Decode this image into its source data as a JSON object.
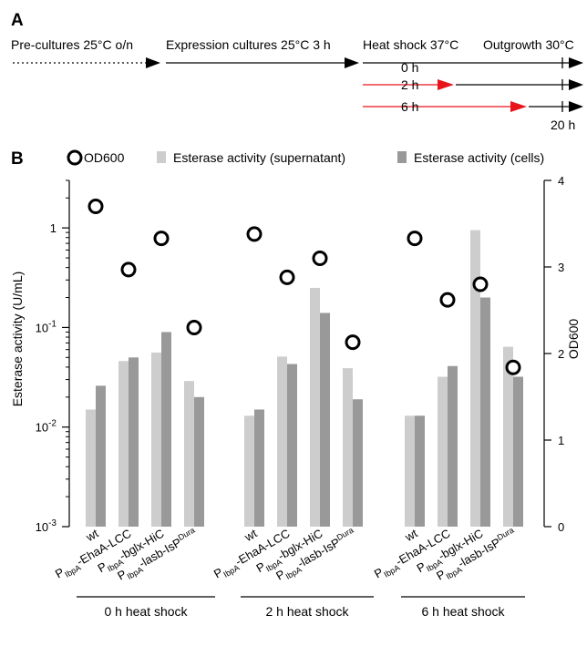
{
  "panel_a": {
    "label": "A",
    "stage_labels": [
      "Pre-cultures 25°C o/n",
      "Expression cultures 25°C 3 h",
      "Heat shock 37°C",
      "Outgrowth 30°C"
    ],
    "rows": [
      {
        "label": "0 h",
        "shock_hours": 0
      },
      {
        "label": "2 h",
        "shock_hours": 2
      },
      {
        "label": "6 h",
        "shock_hours": 6
      }
    ],
    "end_label": "20 h",
    "colors": {
      "line": "#000000",
      "heat": "#e8141c"
    }
  },
  "panel_b": {
    "label": "B",
    "legend": {
      "od600": "OD600",
      "supernatant": "Esterase activity (supernatant)",
      "cells": "Esterase activity (cells)"
    },
    "colors": {
      "supernatant": "#cdcdcd",
      "cells": "#999999",
      "marker": "#000000"
    }
  },
  "chart_data": {
    "type": "bar",
    "ylabel": "Esterase activity (U/mL)",
    "y2label": "OD600",
    "yscale": "log",
    "ylim": [
      0.001,
      3
    ],
    "y_ticks": [
      {
        "value": 0.001,
        "base": "10",
        "exp": "-3"
      },
      {
        "value": 0.01,
        "base": "10",
        "exp": "-2"
      },
      {
        "value": 0.1,
        "base": "10",
        "exp": "-1"
      },
      {
        "value": 1,
        "base": "1",
        "exp": ""
      }
    ],
    "y2lim": [
      0,
      4
    ],
    "y2_ticks": [
      "0",
      "1",
      "2",
      "3",
      "4"
    ],
    "strains": [
      {
        "name": "wt"
      },
      {
        "pre": "P",
        "sub": "IbpA",
        "mid": "-EhaA-LCC",
        "sup": ""
      },
      {
        "pre": "P",
        "sub": "IbpA",
        "mid": "-bglx-HiC",
        "sup": ""
      },
      {
        "pre": "P",
        "sub": "IbpA",
        "mid": "-lasb-IsP",
        "sup": "Dura"
      }
    ],
    "groups": [
      {
        "label": "0 h heat shock",
        "series": [
          {
            "name": "Esterase activity (supernatant)",
            "values": [
              0.015,
              0.046,
              0.056,
              0.029
            ]
          },
          {
            "name": "Esterase activity (cells)",
            "values": [
              0.026,
              0.05,
              0.09,
              0.02
            ]
          },
          {
            "name": "OD600",
            "values": [
              3.7,
              2.97,
              3.33,
              2.3
            ]
          }
        ]
      },
      {
        "label": "2 h heat shock",
        "series": [
          {
            "name": "Esterase activity (supernatant)",
            "values": [
              0.013,
              0.051,
              0.25,
              0.039
            ]
          },
          {
            "name": "Esterase activity (cells)",
            "values": [
              0.015,
              0.043,
              0.14,
              0.019
            ]
          },
          {
            "name": "OD600",
            "values": [
              3.38,
              2.88,
              3.1,
              2.13
            ]
          }
        ]
      },
      {
        "label": "6 h heat shock",
        "series": [
          {
            "name": "Esterase activity (supernatant)",
            "values": [
              0.013,
              0.032,
              0.95,
              0.064
            ]
          },
          {
            "name": "Esterase activity (cells)",
            "values": [
              0.013,
              0.041,
              0.2,
              0.032
            ]
          },
          {
            "name": "OD600",
            "values": [
              3.33,
              2.62,
              2.8,
              1.84
            ]
          }
        ]
      }
    ]
  }
}
